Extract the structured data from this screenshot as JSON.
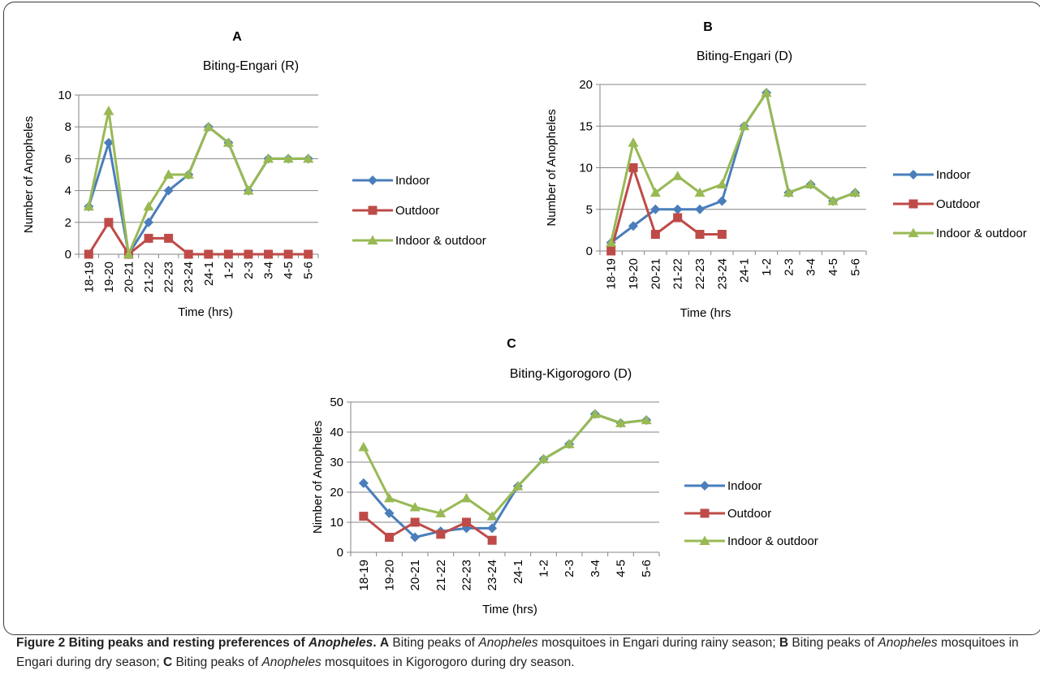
{
  "chart_data": [
    {
      "type": "line",
      "panel_label": "A",
      "title": "Biting-Engari (R)",
      "xlabel": "Time (hrs)",
      "ylabel": "Number of Anopheles",
      "ylim": [
        0,
        10
      ],
      "yticks": [
        0,
        2,
        4,
        6,
        8,
        10
      ],
      "categories": [
        "18-19",
        "19-20",
        "20-21",
        "21-22",
        "22-23",
        "23-24",
        "24-1",
        "1-2",
        "2-3",
        "3-4",
        "4-5",
        "5-6"
      ],
      "series": [
        {
          "name": "Indoor",
          "color": "#4a7ebb",
          "marker": "diamond",
          "values": [
            3,
            7,
            0,
            2,
            4,
            5,
            8,
            7,
            4,
            6,
            6,
            6
          ]
        },
        {
          "name": "Outdoor",
          "color": "#be4b48",
          "marker": "square",
          "values": [
            0,
            2,
            0,
            1,
            1,
            0,
            0,
            0,
            0,
            0,
            0,
            0
          ]
        },
        {
          "name": "Indoor & outdoor",
          "color": "#98b954",
          "marker": "triangle",
          "values": [
            3,
            9,
            0,
            3,
            5,
            5,
            8,
            7,
            4,
            6,
            6,
            6
          ]
        }
      ],
      "grid": true,
      "legend": "right"
    },
    {
      "type": "line",
      "panel_label": "B",
      "title": "Biting-Engari (D)",
      "xlabel": "Time (hrs",
      "ylabel": "Number of Anopheles",
      "ylim": [
        0,
        20
      ],
      "yticks": [
        0,
        5,
        10,
        15,
        20
      ],
      "categories": [
        "18-19",
        "19-20",
        "20-21",
        "21-22",
        "22-23",
        "23-24",
        "24-1",
        "1-2",
        "2-3",
        "3-4",
        "4-5",
        "5-6"
      ],
      "series": [
        {
          "name": "Indoor",
          "color": "#4a7ebb",
          "marker": "diamond",
          "values": [
            1,
            3,
            5,
            5,
            5,
            6,
            15,
            19,
            7,
            8,
            6,
            7
          ]
        },
        {
          "name": "Outdoor",
          "color": "#be4b48",
          "marker": "square",
          "values": [
            0,
            10,
            2,
            4,
            2,
            2,
            null,
            null,
            null,
            null,
            null,
            null
          ]
        },
        {
          "name": "Indoor & outdoor",
          "color": "#98b954",
          "marker": "triangle",
          "values": [
            1,
            13,
            7,
            9,
            7,
            8,
            15,
            19,
            7,
            8,
            6,
            7
          ]
        }
      ],
      "grid": true,
      "legend": "right"
    },
    {
      "type": "line",
      "panel_label": "C",
      "title": "Biting-Kigorogoro (D)",
      "xlabel": "Time (hrs)",
      "ylabel": "Nimber of Anopheles",
      "ylim": [
        0,
        50
      ],
      "yticks": [
        0,
        10,
        20,
        30,
        40,
        50
      ],
      "categories": [
        "18-19",
        "19-20",
        "20-21",
        "21-22",
        "22-23",
        "23-24",
        "24-1",
        "1-2",
        "2-3",
        "3-4",
        "4-5",
        "5-6"
      ],
      "series": [
        {
          "name": "Indoor",
          "color": "#4a7ebb",
          "marker": "diamond",
          "values": [
            23,
            13,
            5,
            7,
            8,
            8,
            22,
            31,
            36,
            46,
            43,
            44
          ]
        },
        {
          "name": "Outdoor",
          "color": "#be4b48",
          "marker": "square",
          "values": [
            12,
            5,
            10,
            6,
            10,
            4,
            null,
            null,
            null,
            null,
            null,
            null
          ]
        },
        {
          "name": "Indoor & outdoor",
          "color": "#98b954",
          "marker": "triangle",
          "values": [
            35,
            18,
            15,
            13,
            18,
            12,
            22,
            31,
            36,
            46,
            43,
            44
          ]
        }
      ],
      "grid": true,
      "legend": "right"
    }
  ],
  "caption": {
    "lead": "Figure 2 Biting peaks and resting preferences of ",
    "lead_italic": "Anopheles",
    "lead_end": ".",
    "parts": [
      {
        "b": "A",
        "t1": " Biting peaks of ",
        "i": "Anopheles",
        "t2": " mosquitoes in Engari during rainy season; "
      },
      {
        "b": "B",
        "t1": " Biting peaks of ",
        "i": "Anopheles",
        "t2": " mosquitoes in Engari during dry season; "
      },
      {
        "b": "C",
        "t1": " Biting peaks of ",
        "i": "Anopheles",
        "t2": " mosquitoes in Kigorogoro during dry season."
      }
    ]
  }
}
